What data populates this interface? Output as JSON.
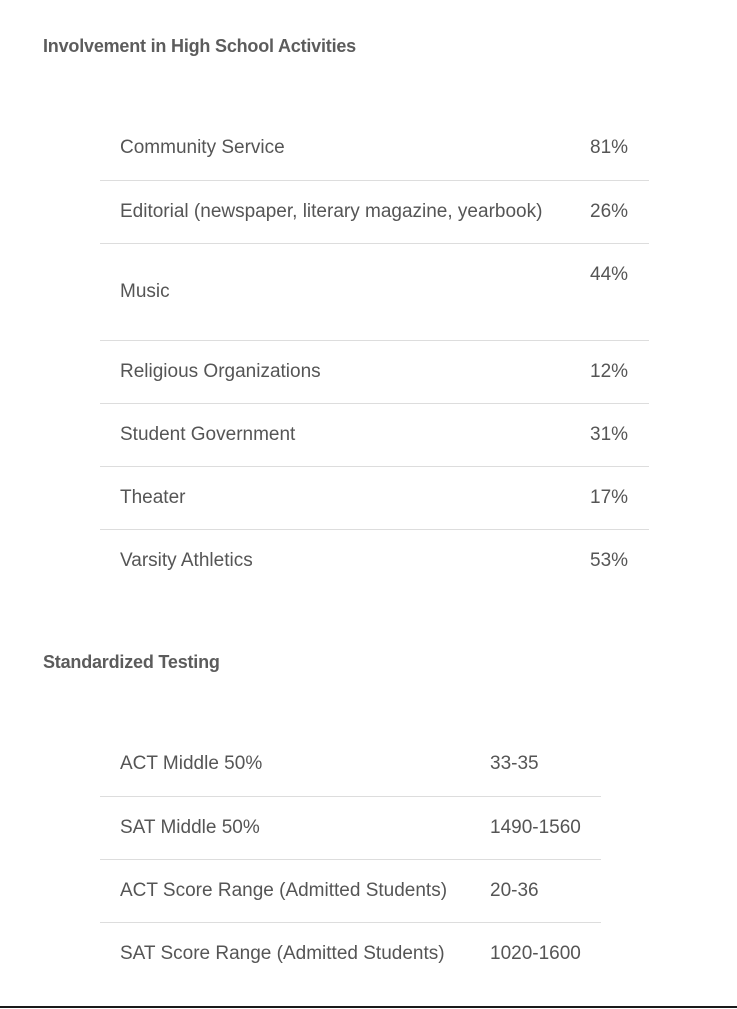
{
  "activities": {
    "title": "Involvement in High School Activities",
    "rows": [
      {
        "label": "Community Service",
        "value": "81%"
      },
      {
        "label": "Editorial (newspaper, literary magazine, yearbook)",
        "value": "26%"
      },
      {
        "label": "Music",
        "value": "44%"
      },
      {
        "label": "Religious Organizations",
        "value": "12%"
      },
      {
        "label": "Student Government",
        "value": "31%"
      },
      {
        "label": "Theater",
        "value": "17%"
      },
      {
        "label": "Varsity Athletics",
        "value": "53%"
      }
    ]
  },
  "testing": {
    "title": "Standardized Testing",
    "rows": [
      {
        "label": "ACT Middle 50%",
        "value": "33-35"
      },
      {
        "label": "SAT Middle 50%",
        "value": "1490-1560"
      },
      {
        "label": "ACT Score Range (Admitted Students)",
        "value": "20-36"
      },
      {
        "label": "SAT Score Range (Admitted Students)",
        "value": "1020-1600"
      }
    ]
  }
}
